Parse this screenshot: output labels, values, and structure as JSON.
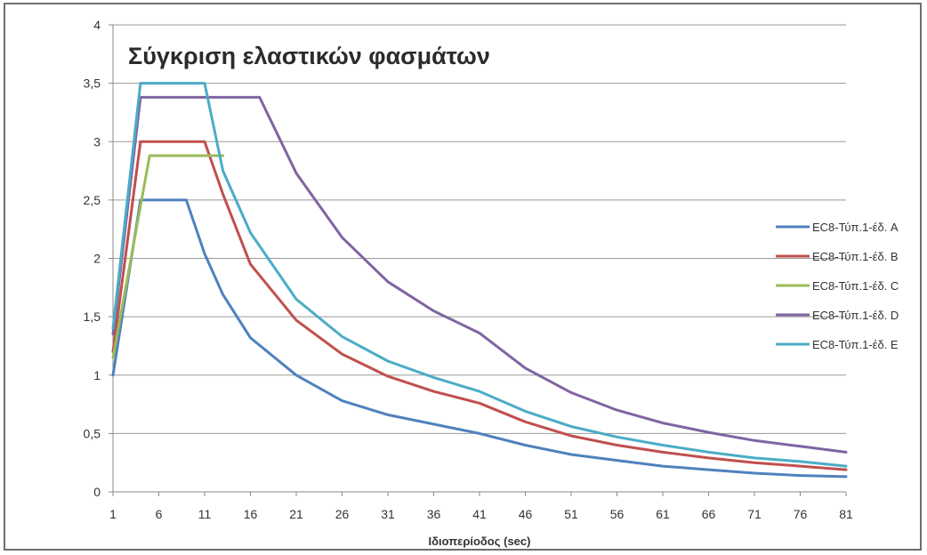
{
  "chart_data": {
    "type": "line",
    "title": "Σύγκριση ελαστικών φασμάτων",
    "xlabel": "Ιδιοπερίοδος (sec)",
    "ylabel": "",
    "xlim": [
      1,
      81
    ],
    "ylim": [
      0,
      4
    ],
    "x_ticks": [
      "1",
      "6",
      "11",
      "16",
      "21",
      "26",
      "31",
      "36",
      "41",
      "46",
      "51",
      "56",
      "61",
      "66",
      "71",
      "76",
      "81"
    ],
    "y_ticks": [
      "0",
      "0,5",
      "1",
      "1,5",
      "2",
      "2,5",
      "3",
      "3,5",
      "4"
    ],
    "grid": "horizontal",
    "legend_position": "right",
    "series": [
      {
        "name": "EC8-Τύπ.1-έδ. A",
        "color": "#4f81bd",
        "x": [
          1,
          4,
          9,
          11,
          13,
          16,
          21,
          26,
          31,
          36,
          41,
          46,
          51,
          56,
          61,
          66,
          71,
          76,
          81
        ],
        "values": [
          1.0,
          2.5,
          2.5,
          2.04,
          1.69,
          1.32,
          1.0,
          0.78,
          0.66,
          0.58,
          0.5,
          0.4,
          0.32,
          0.27,
          0.22,
          0.19,
          0.16,
          0.14,
          0.13
        ]
      },
      {
        "name": "EC8-Τύπ.1-έδ. B",
        "color": "#c0504d",
        "x": [
          1,
          4,
          11,
          13,
          16,
          21,
          26,
          31,
          36,
          41,
          46,
          51,
          56,
          61,
          66,
          71,
          76,
          81
        ],
        "values": [
          1.2,
          3.0,
          3.0,
          2.55,
          1.95,
          1.47,
          1.18,
          0.99,
          0.86,
          0.76,
          0.6,
          0.48,
          0.4,
          0.34,
          0.29,
          0.25,
          0.22,
          0.19
        ]
      },
      {
        "name": "EC8-Τύπ.1-έδ. C",
        "color": "#9bbb59",
        "x": [
          1,
          5,
          13
        ],
        "values": [
          1.15,
          2.88,
          2.88
        ]
      },
      {
        "name": "EC8-Τύπ.1-έδ. D",
        "color": "#8064a2",
        "x": [
          1,
          4,
          17,
          21,
          26,
          31,
          36,
          41,
          46,
          51,
          56,
          61,
          66,
          71,
          76,
          81
        ],
        "values": [
          1.35,
          3.38,
          3.38,
          2.73,
          2.18,
          1.8,
          1.55,
          1.36,
          1.06,
          0.85,
          0.7,
          0.59,
          0.51,
          0.44,
          0.39,
          0.34
        ]
      },
      {
        "name": "EC8-Τύπ.1-έδ. E",
        "color": "#4bacc6",
        "x": [
          1,
          4,
          11,
          13,
          16,
          21,
          26,
          31,
          36,
          41,
          46,
          51,
          56,
          61,
          66,
          71,
          76,
          81
        ],
        "values": [
          1.4,
          3.5,
          3.5,
          2.75,
          2.22,
          1.65,
          1.33,
          1.12,
          0.98,
          0.86,
          0.69,
          0.56,
          0.47,
          0.4,
          0.34,
          0.29,
          0.26,
          0.22
        ]
      }
    ]
  }
}
